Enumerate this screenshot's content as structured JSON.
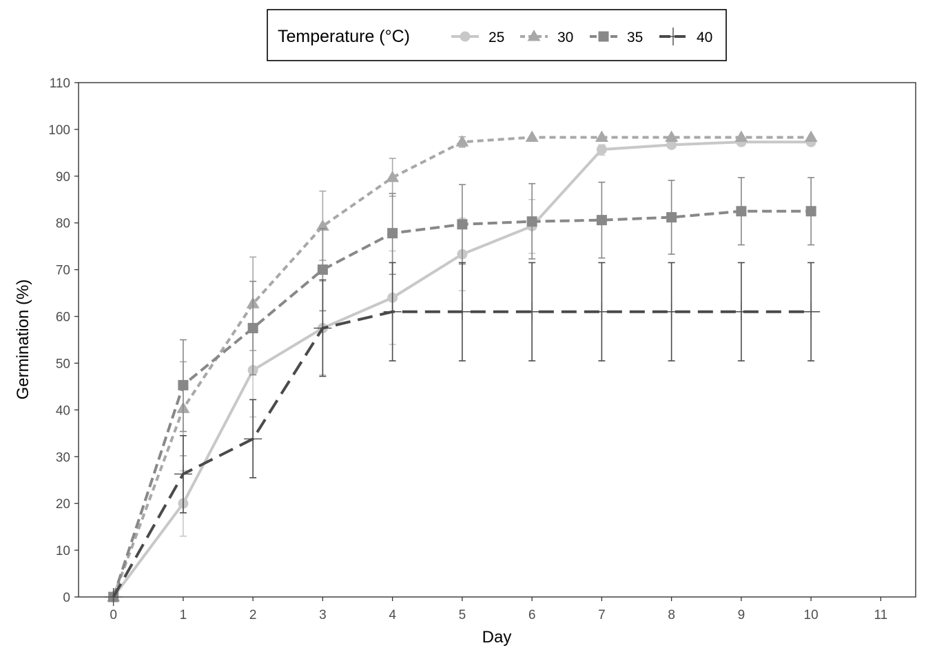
{
  "chart_data": {
    "type": "line",
    "xlabel": "Day",
    "ylabel": "Germination (%)",
    "xlim": [
      -0.5,
      11.5
    ],
    "ylim": [
      0,
      110
    ],
    "xticks": [
      0,
      1,
      2,
      3,
      4,
      5,
      6,
      7,
      8,
      9,
      10,
      11
    ],
    "yticks": [
      0,
      10,
      20,
      30,
      40,
      50,
      60,
      70,
      80,
      90,
      100,
      110
    ],
    "grid": false,
    "legend": {
      "title": "Temperature (°C)",
      "position": "top"
    },
    "x": [
      0,
      1,
      2,
      3,
      4,
      5,
      6,
      7,
      8,
      9,
      10
    ],
    "series": [
      {
        "name": "25",
        "color": "#c8c8c8",
        "marker": "circle",
        "linestyle": "solid",
        "values": [
          0,
          20,
          48.5,
          57.5,
          64,
          73.3,
          79.3,
          95.7,
          96.7,
          97.3,
          97.3
        ],
        "err_low": [
          0,
          13,
          38.5,
          47.5,
          54,
          65.5,
          73.5,
          94.5,
          96,
          96.5,
          96.5
        ],
        "err_high": [
          0,
          27,
          58.5,
          67.5,
          74,
          81,
          85,
          96.7,
          97.5,
          98,
          98
        ]
      },
      {
        "name": "30",
        "color": "#a8a8a8",
        "marker": "triangle",
        "linestyle": "dotted",
        "values": [
          0,
          40.3,
          62.7,
          79.3,
          89.7,
          97.3,
          98.3,
          98.3,
          98.3,
          98.3,
          98.3
        ],
        "err_low": [
          0,
          30.2,
          52.7,
          72,
          85.7,
          96.2,
          98.3,
          98.3,
          98.3,
          98.3,
          98.3
        ],
        "err_high": [
          0,
          50.3,
          72.7,
          86.8,
          93.8,
          98.4,
          98.3,
          98.3,
          98.3,
          98.3,
          98.3
        ]
      },
      {
        "name": "35",
        "color": "#888888",
        "marker": "square",
        "linestyle": "dashed",
        "values": [
          0,
          45.3,
          57.5,
          70,
          77.8,
          79.7,
          80.3,
          80.6,
          81.2,
          82.5,
          82.5
        ],
        "err_low": [
          0,
          35.4,
          47.5,
          61.2,
          69,
          71.2,
          72.3,
          72.5,
          73.3,
          75.3,
          75.3
        ],
        "err_high": [
          0,
          55,
          67.5,
          78.8,
          86.3,
          88.2,
          88.4,
          88.7,
          89.1,
          89.7,
          89.7
        ]
      },
      {
        "name": "40",
        "color": "#4a4a4a",
        "marker": "cross",
        "linestyle": "longdash",
        "values": [
          0,
          26.3,
          33.8,
          57.5,
          61,
          61,
          61,
          61,
          61,
          61,
          61
        ],
        "err_low": [
          0,
          18,
          25.5,
          47.2,
          50.5,
          50.5,
          50.5,
          50.5,
          50.5,
          50.5,
          50.5
        ],
        "err_high": [
          0,
          34.5,
          42.2,
          67.8,
          71.5,
          71.5,
          71.5,
          71.5,
          71.5,
          71.5,
          71.5
        ]
      }
    ]
  }
}
